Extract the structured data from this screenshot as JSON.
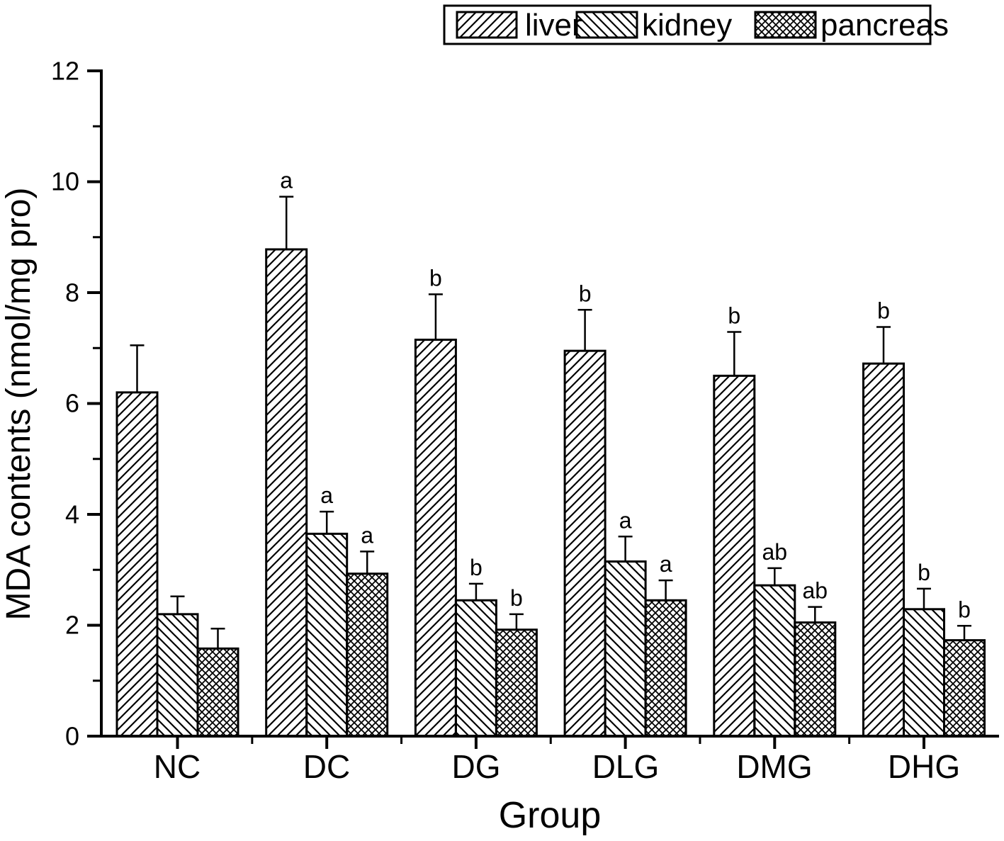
{
  "chart_data": {
    "type": "bar",
    "title": "",
    "xlabel": "Group",
    "ylabel": "MDA contents (nmol/mg pro)",
    "categories": [
      "NC",
      "DC",
      "DG",
      "DLG",
      "DMG",
      "DHG"
    ],
    "series": [
      {
        "name": "liver",
        "key": "liver",
        "hatch": "diagonal-up",
        "values": [
          6.2,
          8.78,
          7.15,
          6.95,
          6.5,
          6.72
        ],
        "errors": [
          0.85,
          0.95,
          0.82,
          0.74,
          0.79,
          0.66
        ],
        "letters": [
          "",
          "a",
          "b",
          "b",
          "b",
          "b"
        ]
      },
      {
        "name": "kidney",
        "key": "kidney",
        "hatch": "diagonal-down",
        "values": [
          2.2,
          3.65,
          2.45,
          3.15,
          2.72,
          2.29
        ],
        "errors": [
          0.32,
          0.4,
          0.3,
          0.45,
          0.31,
          0.37
        ],
        "letters": [
          "",
          "a",
          "b",
          "a",
          "ab",
          "b"
        ]
      },
      {
        "name": "pancreas",
        "key": "pancreas",
        "hatch": "crosshatch",
        "values": [
          1.58,
          2.93,
          1.92,
          2.45,
          2.05,
          1.73
        ],
        "errors": [
          0.36,
          0.4,
          0.28,
          0.36,
          0.28,
          0.26
        ],
        "letters": [
          "",
          "a",
          "b",
          "a",
          "ab",
          "b"
        ]
      }
    ],
    "ylim": [
      0,
      12
    ],
    "ytick_major_step": 2,
    "ytick_minor_step": 1,
    "ytick_labels": [
      "0",
      "2",
      "4",
      "6",
      "8",
      "10",
      "12"
    ],
    "grid": false,
    "legend_position": "top-center",
    "bar_color": "#ffffff",
    "line_color": "#000000",
    "background_color": "#ffffff"
  }
}
